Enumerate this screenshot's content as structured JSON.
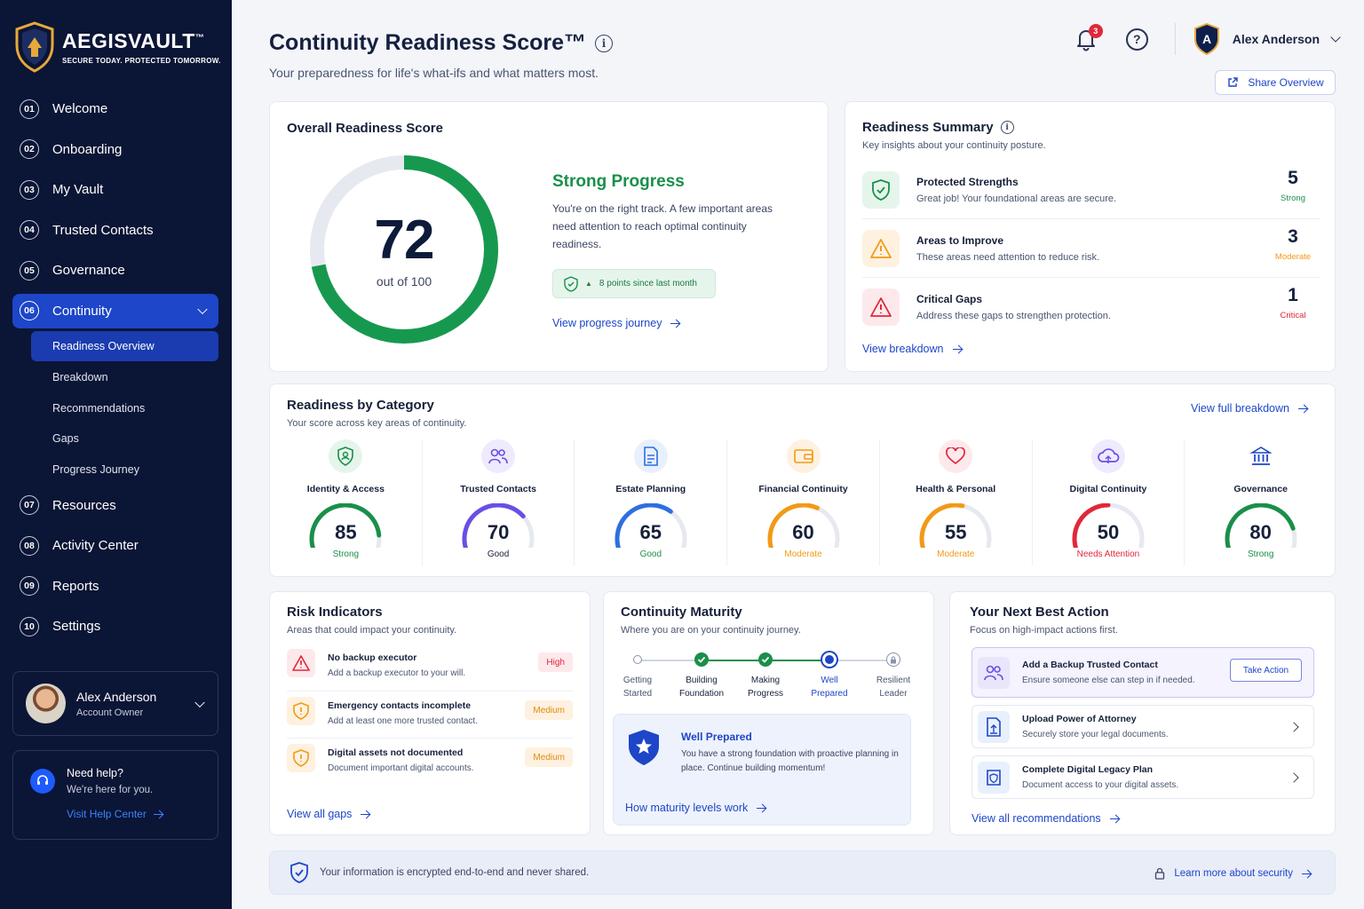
{
  "brand": {
    "name": "AEGISVAULT",
    "tm": "™",
    "tagline": "SECURE TODAY. PROTECTED TOMORROW."
  },
  "nav": {
    "items_top": [
      {
        "num": "01",
        "label": "Welcome"
      },
      {
        "num": "02",
        "label": "Onboarding"
      },
      {
        "num": "03",
        "label": "My Vault"
      },
      {
        "num": "04",
        "label": "Trusted Contacts"
      },
      {
        "num": "05",
        "label": "Governance"
      }
    ],
    "active": {
      "num": "06",
      "label": "Continuity"
    },
    "sub": [
      "Readiness Overview",
      "Breakdown",
      "Recommendations",
      "Gaps",
      "Progress Journey"
    ],
    "items_bottom": [
      {
        "num": "07",
        "label": "Resources"
      },
      {
        "num": "08",
        "label": "Activity Center"
      },
      {
        "num": "09",
        "label": "Reports"
      },
      {
        "num": "10",
        "label": "Settings"
      }
    ]
  },
  "user": {
    "name": "Alex Anderson",
    "role": "Account Owner",
    "initial": "A"
  },
  "help": {
    "title": "Need help?",
    "sub": "We're here for you.",
    "link": "Visit Help Center"
  },
  "header": {
    "title": "Continuity Readiness Score™",
    "subtitle": "Your preparedness for life's what-ifs and what matters most.",
    "notifications": "3",
    "share": "Share Overview"
  },
  "overall": {
    "title": "Overall Readiness Score",
    "score": "72",
    "score_value": 72,
    "out_of": "out of 100",
    "status": "Strong Progress",
    "text": "You're on the right track. A few important areas need attention to reach optimal continuity readiness.",
    "delta": "8 points since last month",
    "link": "View progress journey"
  },
  "summary": {
    "title": "Readiness Summary",
    "sub": "Key insights about your continuity posture.",
    "rows": [
      {
        "title": "Protected Strengths",
        "text": "Great job! Your foundational areas are secure.",
        "value": "5",
        "label": "Strong",
        "color": "#1a8f4a"
      },
      {
        "title": "Areas to Improve",
        "text": "These areas need attention to reduce risk.",
        "value": "3",
        "label": "Moderate",
        "color": "#f29a16"
      },
      {
        "title": "Critical Gaps",
        "text": "Address these gaps to strengthen protection.",
        "value": "1",
        "label": "Critical",
        "color": "#e0283a"
      }
    ],
    "link": "View breakdown"
  },
  "categories": {
    "title": "Readiness by Category",
    "sub": "Your score across key areas of continuity.",
    "link": "View full breakdown",
    "items": [
      {
        "name": "Identity & Access",
        "score": "85",
        "value": 85,
        "label": "Strong",
        "color": "#1a8f4a",
        "icon": "shield-user-icon"
      },
      {
        "name": "Trusted Contacts",
        "score": "70",
        "value": 70,
        "label": "Good",
        "color": "#6a4ee6",
        "icon": "people-icon"
      },
      {
        "name": "Estate Planning",
        "score": "65",
        "value": 65,
        "label": "Good",
        "color": "#2e6fe0",
        "icon": "document-icon"
      },
      {
        "name": "Financial Continuity",
        "score": "60",
        "value": 60,
        "label": "Moderate",
        "color": "#f29a16",
        "icon": "wallet-icon"
      },
      {
        "name": "Health & Personal",
        "score": "55",
        "value": 55,
        "label": "Moderate",
        "color": "#f29a16",
        "icon": "heart-icon"
      },
      {
        "name": "Digital Continuity",
        "score": "50",
        "value": 50,
        "label": "Needs Attention",
        "color": "#e0283a",
        "icon": "cloud-icon"
      },
      {
        "name": "Governance",
        "score": "80",
        "value": 80,
        "label": "Strong",
        "color": "#1a8f4a",
        "icon": "bank-icon"
      }
    ]
  },
  "risk": {
    "title": "Risk Indicators",
    "sub": "Areas that could impact your continuity.",
    "rows": [
      {
        "title": "No backup executor",
        "text": "Add a backup executor to your will.",
        "level": "High"
      },
      {
        "title": "Emergency contacts incomplete",
        "text": "Add at least one more trusted contact.",
        "level": "Medium"
      },
      {
        "title": "Digital assets not documented",
        "text": "Document important digital accounts.",
        "level": "Medium"
      }
    ],
    "link": "View all gaps"
  },
  "maturity": {
    "title": "Continuity Maturity",
    "sub": "Where you are on your continuity journey.",
    "steps": [
      {
        "l1": "Getting",
        "l2": "Started"
      },
      {
        "l1": "Building",
        "l2": "Foundation"
      },
      {
        "l1": "Making",
        "l2": "Progress"
      },
      {
        "l1": "Well",
        "l2": "Prepared"
      },
      {
        "l1": "Resilient",
        "l2": "Leader"
      }
    ],
    "box_title": "Well Prepared",
    "box_text": "You have a strong foundation with proactive planning in place. Continue building momentum!",
    "link": "How maturity levels work"
  },
  "next": {
    "title": "Your Next Best Action",
    "sub": "Focus on high-impact actions first.",
    "actions": [
      {
        "title": "Add a Backup Trusted Contact",
        "text": "Ensure someone else can step in if needed.",
        "button": "Take Action"
      },
      {
        "title": "Upload Power of Attorney",
        "text": "Securely store your legal documents."
      },
      {
        "title": "Complete Digital Legacy Plan",
        "text": "Document access to your digital assets."
      }
    ],
    "link": "View all recommendations"
  },
  "footer": {
    "text": "Your information is encrypted end-to-end and never shared.",
    "link": "Learn more about security"
  }
}
